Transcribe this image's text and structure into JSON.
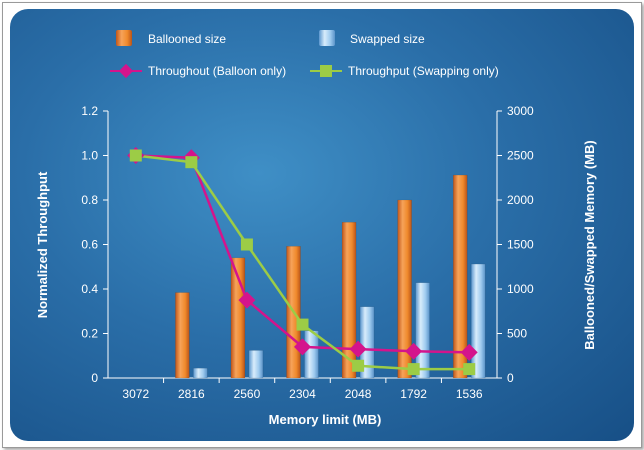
{
  "chart_data": {
    "type": "bar",
    "xlabel": "Memory limit (MB)",
    "ylabel": "Normalized Throughput",
    "y2label": "Ballooned/Swapped Memory (MB)",
    "categories": [
      "3072",
      "2816",
      "2560",
      "2304",
      "2048",
      "1792",
      "1536"
    ],
    "ylim": [
      0,
      1.2
    ],
    "y_ticks": [
      "0",
      "0.2",
      "0.4",
      "0.6",
      "0.8",
      "1.0",
      "1.2"
    ],
    "y2lim": [
      0,
      3000
    ],
    "y2_ticks": [
      "0",
      "500",
      "1000",
      "1500",
      "2000",
      "2500",
      "3000"
    ],
    "bar_series": [
      {
        "name": "Ballooned size",
        "color": "#f08a2c",
        "values": [
          0,
          960,
          1350,
          1480,
          1750,
          2000,
          2280
        ]
      },
      {
        "name": "Swapped size",
        "color": "#8ec3ec",
        "values": [
          0,
          110,
          310,
          530,
          800,
          1070,
          1280
        ]
      }
    ],
    "line_series": [
      {
        "name": "Throughout (Balloon only)",
        "color": "#d4148c",
        "marker": "diamond",
        "values": [
          1.0,
          0.99,
          0.35,
          0.14,
          0.13,
          0.12,
          0.115
        ]
      },
      {
        "name": "Throughput (Swapping only)",
        "color": "#9ccc46",
        "marker": "square",
        "values": [
          1.0,
          0.97,
          0.6,
          0.24,
          0.055,
          0.04,
          0.04
        ]
      }
    ],
    "grid": false,
    "legend_position": "top"
  },
  "colors": {
    "panel": "#2a6ea8",
    "axis": "#ffffff"
  }
}
